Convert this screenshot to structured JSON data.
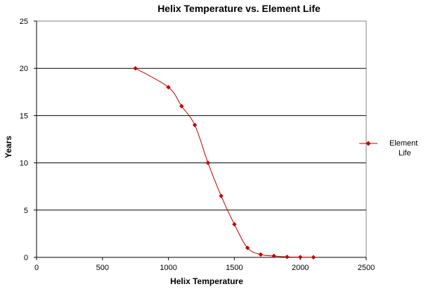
{
  "chart_data": {
    "type": "line",
    "title": "Helix Temperature vs. Element Life",
    "xlabel": "Helix Temperature",
    "ylabel": "Years",
    "xlim": [
      0,
      2500
    ],
    "ylim": [
      0,
      25
    ],
    "x_ticks": [
      0,
      500,
      1000,
      1500,
      2000,
      2500
    ],
    "y_ticks": [
      0,
      5,
      10,
      15,
      20,
      25
    ],
    "grid": "horizontal",
    "legend_position": "right",
    "series": [
      {
        "name": "Element Life",
        "legend_lines": [
          "Element",
          "Life"
        ],
        "color": "#c00000",
        "marker": "diamond",
        "smooth": true,
        "x": [
          750,
          1000,
          1100,
          1200,
          1300,
          1400,
          1500,
          1600,
          1700,
          1800,
          1900,
          2000,
          2100
        ],
        "y": [
          20,
          18,
          16,
          14,
          10,
          6.5,
          3.5,
          1,
          0.3,
          0.15,
          0.05,
          0.02,
          0.01
        ]
      }
    ]
  }
}
